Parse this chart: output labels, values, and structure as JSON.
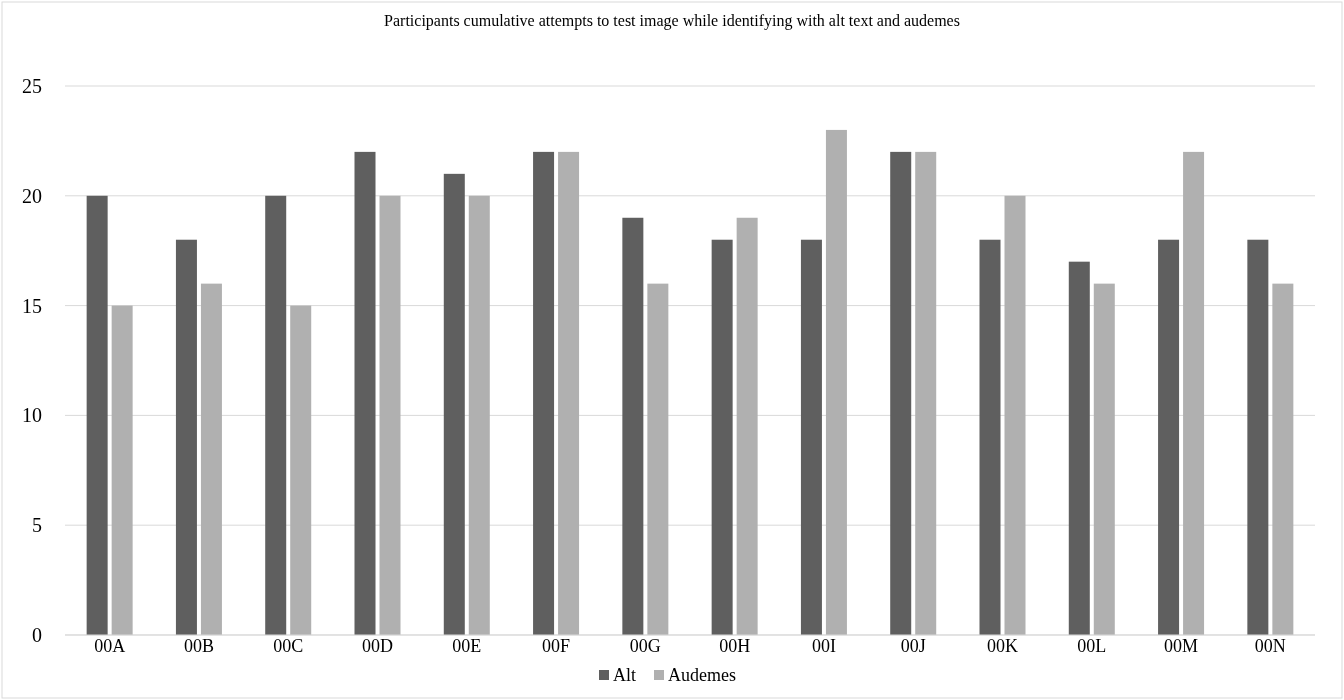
{
  "chart_data": {
    "type": "bar",
    "title": "Participants cumulative attempts to test image while identifying with alt text and audemes",
    "categories": [
      "00A",
      "00B",
      "00C",
      "00D",
      "00E",
      "00F",
      "00G",
      "00H",
      "00I",
      "00J",
      "00K",
      "00L",
      "00M",
      "00N"
    ],
    "series": [
      {
        "name": "Alt",
        "color": "#5f5f5f",
        "values": [
          20,
          18,
          20,
          22,
          21,
          22,
          19,
          18,
          18,
          22,
          18,
          17,
          18,
          18
        ]
      },
      {
        "name": "Audemes",
        "color": "#b0b0b0",
        "values": [
          15,
          16,
          15,
          20,
          20,
          22,
          16,
          19,
          23,
          22,
          20,
          16,
          22,
          16
        ]
      }
    ],
    "ylim": [
      0,
      25
    ],
    "yticks": [
      0,
      5,
      10,
      15,
      20,
      25
    ],
    "grid": "y",
    "legend": "bottom"
  }
}
